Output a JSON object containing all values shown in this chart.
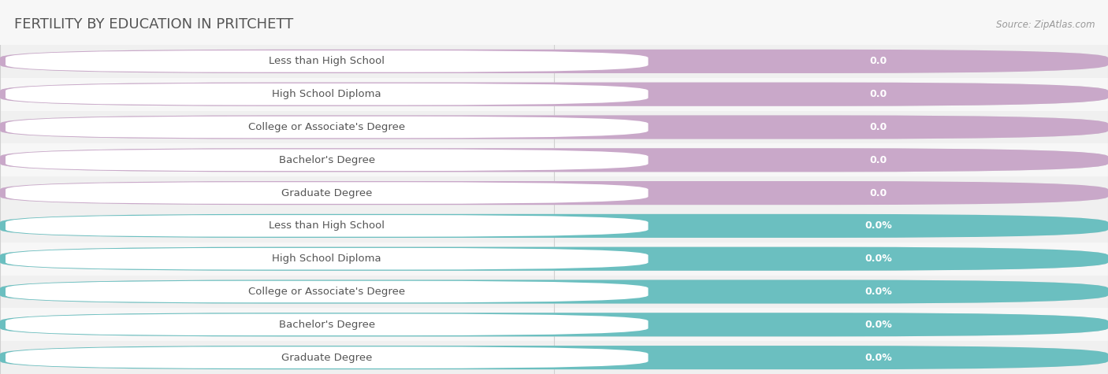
{
  "title": "FERTILITY BY EDUCATION IN PRITCHETT",
  "source": "Source: ZipAtlas.com",
  "categories": [
    "Less than High School",
    "High School Diploma",
    "College or Associate's Degree",
    "Bachelor's Degree",
    "Graduate Degree"
  ],
  "top_values": [
    0.0,
    0.0,
    0.0,
    0.0,
    0.0
  ],
  "bottom_values": [
    0.0,
    0.0,
    0.0,
    0.0,
    0.0
  ],
  "top_bar_color": "#c9a8c9",
  "top_label_color": "#5a7a6a",
  "top_value_color": "#c49ab8",
  "bottom_bar_color": "#6bbfc0",
  "bottom_label_color": "#5a7a6a",
  "bottom_value_color": "#6bbfc0",
  "bg_color": "#f7f7f7",
  "row_alt_color": "#efefef",
  "bar_bg_color": "#e8e8e8",
  "bar_track_color": "#e0e0e0",
  "title_fontsize": 13,
  "label_fontsize": 9.5,
  "value_fontsize": 9,
  "tick_fontsize": 9,
  "source_fontsize": 8.5
}
